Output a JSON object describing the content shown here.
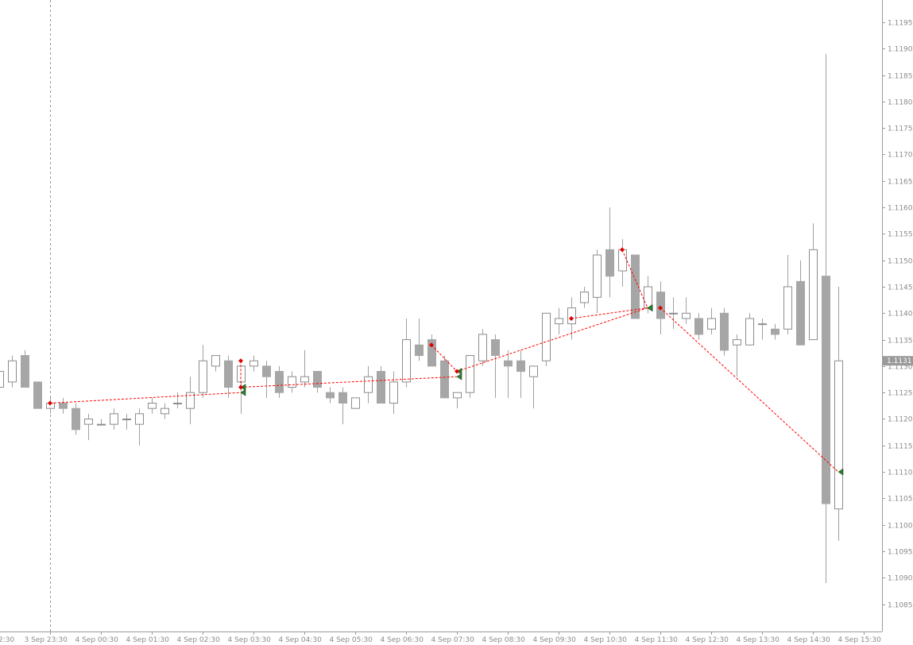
{
  "colors": {
    "background": "#ffffff",
    "bull_fill": "#ffffff",
    "bull_stroke": "#8c8c8c",
    "bear_fill": "#a6a6a6",
    "bear_stroke": "#a6a6a6",
    "wick": "#a0a0a0",
    "axis": "#9a9a9a",
    "tick_text": "#8a8a8a",
    "price_tag_bg": "#9a9a9a",
    "trade_line": "#ff0000",
    "entry_marker": "#e00000",
    "exit_marker": "#2e7d32",
    "period_separator": "#9a9a9a"
  },
  "chart_data": {
    "type": "candlestick",
    "title": "",
    "xlabel": "",
    "ylabel": "",
    "ylim": [
      1.108,
      1.12
    ],
    "y_ticks": [
      "1.1085",
      "1.1090",
      "1.1095",
      "1.1100",
      "1.1105",
      "1.1110",
      "1.1115",
      "1.1120",
      "1.1125",
      "1.1130",
      "1.1135",
      "1.1140",
      "1.1145",
      "1.1150",
      "1.1155",
      "1.1160",
      "1.1165",
      "1.1170",
      "1.1175",
      "1.1180",
      "1.1185",
      "1.1190",
      "1.1195"
    ],
    "current_price": "1.1131",
    "x_ticks": [
      "2:30",
      "3 Sep 23:30",
      "4 Sep 00:30",
      "4 Sep 01:30",
      "4 Sep 02:30",
      "4 Sep 03:30",
      "4 Sep 04:30",
      "4 Sep 05:30",
      "4 Sep 06:30",
      "4 Sep 07:30",
      "4 Sep 08:30",
      "4 Sep 09:30",
      "4 Sep 10:30",
      "4 Sep 11:30",
      "4 Sep 12:30",
      "4 Sep 13:30",
      "4 Sep 14:30",
      "4 Sep 15:30"
    ],
    "bars_per_hour": 4,
    "first_bar_index": -2,
    "period_separator_bar": 2,
    "grid": false,
    "candles": [
      [
        1.1126,
        1.113,
        1.1124,
        1.1129
      ],
      [
        1.1127,
        1.1132,
        1.1126,
        1.1131
      ],
      [
        1.1132,
        1.1133,
        1.1126,
        1.1126
      ],
      [
        1.1127,
        1.1127,
        1.1122,
        1.1122
      ],
      [
        1.1122,
        1.1124,
        1.1121,
        1.1123
      ],
      [
        1.1123,
        1.1124,
        1.1121,
        1.1122
      ],
      [
        1.1122,
        1.1123,
        1.1117,
        1.1118
      ],
      [
        1.1119,
        1.1121,
        1.1116,
        1.112
      ],
      [
        1.1119,
        1.112,
        1.1119,
        1.1119
      ],
      [
        1.1119,
        1.1122,
        1.1118,
        1.1121
      ],
      [
        1.112,
        1.1121,
        1.1118,
        1.112
      ],
      [
        1.1119,
        1.1122,
        1.1115,
        1.1121
      ],
      [
        1.1122,
        1.1124,
        1.1121,
        1.1123
      ],
      [
        1.1121,
        1.1123,
        1.112,
        1.1122
      ],
      [
        1.1123,
        1.1125,
        1.1122,
        1.1123
      ],
      [
        1.1122,
        1.1128,
        1.1119,
        1.1125
      ],
      [
        1.1125,
        1.1134,
        1.1124,
        1.1131
      ],
      [
        1.113,
        1.1132,
        1.1129,
        1.1132
      ],
      [
        1.1131,
        1.1132,
        1.1124,
        1.1126
      ],
      [
        1.1127,
        1.113,
        1.1121,
        1.113
      ],
      [
        1.113,
        1.1132,
        1.1129,
        1.1131
      ],
      [
        1.113,
        1.1131,
        1.1124,
        1.1128
      ],
      [
        1.1129,
        1.113,
        1.1124,
        1.1125
      ],
      [
        1.1126,
        1.1129,
        1.1125,
        1.1128
      ],
      [
        1.1127,
        1.1133,
        1.1126,
        1.1128
      ],
      [
        1.1129,
        1.1129,
        1.1125,
        1.1126
      ],
      [
        1.1125,
        1.1126,
        1.1123,
        1.1124
      ],
      [
        1.1125,
        1.1126,
        1.1119,
        1.1123
      ],
      [
        1.1122,
        1.1124,
        1.1122,
        1.1124
      ],
      [
        1.1125,
        1.113,
        1.1123,
        1.1128
      ],
      [
        1.1129,
        1.113,
        1.1123,
        1.1123
      ],
      [
        1.1123,
        1.1129,
        1.1121,
        1.1127
      ],
      [
        1.1127,
        1.1139,
        1.1126,
        1.1135
      ],
      [
        1.1134,
        1.1139,
        1.1131,
        1.1132
      ],
      [
        1.1135,
        1.1136,
        1.113,
        1.113
      ],
      [
        1.1131,
        1.1132,
        1.1124,
        1.1124
      ],
      [
        1.1124,
        1.1125,
        1.1122,
        1.1125
      ],
      [
        1.1125,
        1.1132,
        1.1124,
        1.1132
      ],
      [
        1.1131,
        1.1137,
        1.113,
        1.1136
      ],
      [
        1.1135,
        1.1136,
        1.1124,
        1.1132
      ],
      [
        1.1131,
        1.1133,
        1.1124,
        1.113
      ],
      [
        1.1131,
        1.1133,
        1.1124,
        1.1129
      ],
      [
        1.1128,
        1.113,
        1.1122,
        1.113
      ],
      [
        1.1131,
        1.114,
        1.113,
        1.114
      ],
      [
        1.1138,
        1.1141,
        1.1136,
        1.1139
      ],
      [
        1.1138,
        1.1143,
        1.1135,
        1.1141
      ],
      [
        1.1142,
        1.1145,
        1.1141,
        1.1144
      ],
      [
        1.1143,
        1.1152,
        1.114,
        1.1151
      ],
      [
        1.1152,
        1.116,
        1.1143,
        1.1147
      ],
      [
        1.1148,
        1.1154,
        1.1145,
        1.1152
      ],
      [
        1.1151,
        1.1151,
        1.1139,
        1.1139
      ],
      [
        1.1141,
        1.1147,
        1.114,
        1.1145
      ],
      [
        1.1144,
        1.1146,
        1.1136,
        1.1139
      ],
      [
        1.114,
        1.1143,
        1.1137,
        1.114
      ],
      [
        1.1139,
        1.1143,
        1.1138,
        1.114
      ],
      [
        1.1139,
        1.114,
        1.1135,
        1.1136
      ],
      [
        1.1137,
        1.1141,
        1.1136,
        1.1139
      ],
      [
        1.114,
        1.1141,
        1.1132,
        1.1133
      ],
      [
        1.1134,
        1.1136,
        1.1128,
        1.1135
      ],
      [
        1.1134,
        1.114,
        1.1134,
        1.1139
      ],
      [
        1.1138,
        1.1139,
        1.1135,
        1.1138
      ],
      [
        1.1137,
        1.1138,
        1.1135,
        1.1136
      ],
      [
        1.1137,
        1.1151,
        1.1136,
        1.1145
      ],
      [
        1.1146,
        1.115,
        1.1134,
        1.1134
      ],
      [
        1.1135,
        1.1157,
        1.1135,
        1.1152
      ],
      [
        1.1147,
        1.1189,
        1.1089,
        1.1104
      ],
      [
        1.1103,
        1.1145,
        1.1097,
        1.1131
      ]
    ],
    "trades": [
      {
        "entry": [
          2,
          1.1123
        ],
        "exit": [
          17,
          1.1125
        ]
      },
      {
        "entry": [
          17,
          1.1131
        ],
        "exit": [
          17,
          1.1126
        ]
      },
      {
        "entry": [
          17,
          1.1126
        ],
        "exit": [
          34,
          1.1128
        ]
      },
      {
        "entry": [
          32,
          1.1134
        ],
        "exit": [
          34,
          1.1129
        ]
      },
      {
        "entry": [
          34,
          1.1129
        ],
        "exit": [
          49,
          1.1141
        ]
      },
      {
        "entry": [
          43,
          1.1139
        ],
        "exit": [
          49,
          1.1141
        ]
      },
      {
        "entry": [
          47,
          1.1152
        ],
        "exit": [
          49,
          1.1141
        ]
      },
      {
        "entry": [
          50,
          1.1141
        ],
        "exit": [
          64,
          1.111
        ]
      }
    ]
  }
}
